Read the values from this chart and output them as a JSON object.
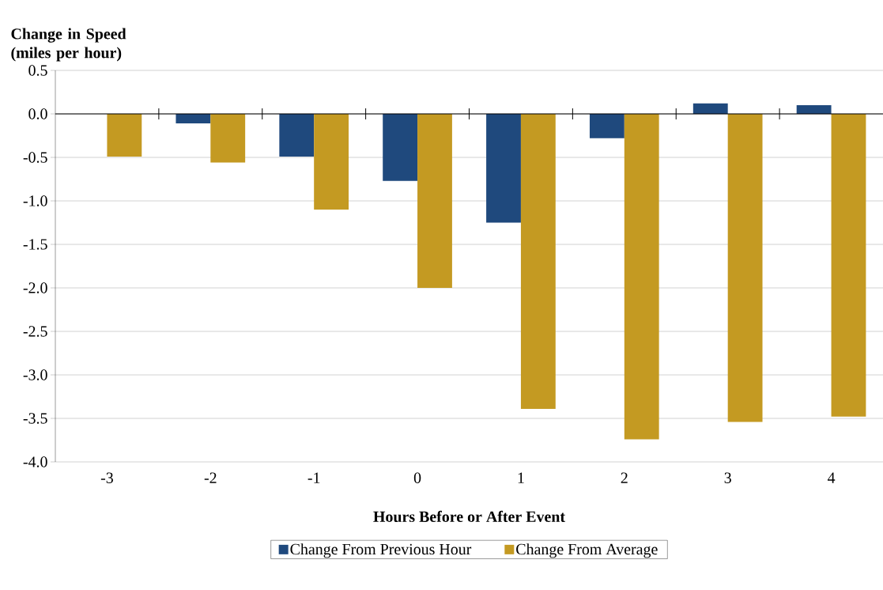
{
  "chart_data": {
    "type": "bar",
    "ylabel": "Change in Speed (miles per hour)",
    "xlabel": "Hours Before or After Event",
    "categories": [
      "-3",
      "-2",
      "-1",
      "0",
      "1",
      "2",
      "3",
      "4"
    ],
    "series": [
      {
        "name": "Change From Previous Hour",
        "color": "#1f497d",
        "values": [
          null,
          -0.11,
          -0.49,
          -0.77,
          -1.25,
          -0.28,
          0.12,
          0.1
        ]
      },
      {
        "name": "Change From Average",
        "color": "#c49a22",
        "values": [
          -0.49,
          -0.56,
          -1.1,
          -2.0,
          -3.39,
          -3.74,
          -3.54,
          -3.48
        ]
      }
    ],
    "ylim": [
      -4.0,
      0.5
    ],
    "yticks": [
      {
        "value": -4.0,
        "label": "-4.0"
      },
      {
        "value": -3.5,
        "label": "-3.5"
      },
      {
        "value": -3.0,
        "label": "-3.0"
      },
      {
        "value": -2.5,
        "label": "-2.5"
      },
      {
        "value": -2.0,
        "label": "-2.0"
      },
      {
        "value": -1.5,
        "label": "-1.5"
      },
      {
        "value": -1.0,
        "label": "-1.0"
      },
      {
        "value": -0.5,
        "label": "-0.5"
      },
      {
        "value": 0.0,
        "label": "0.0"
      },
      {
        "value": 0.5,
        "label": "0.5"
      }
    ],
    "grid": "y",
    "legend": "bottom"
  }
}
